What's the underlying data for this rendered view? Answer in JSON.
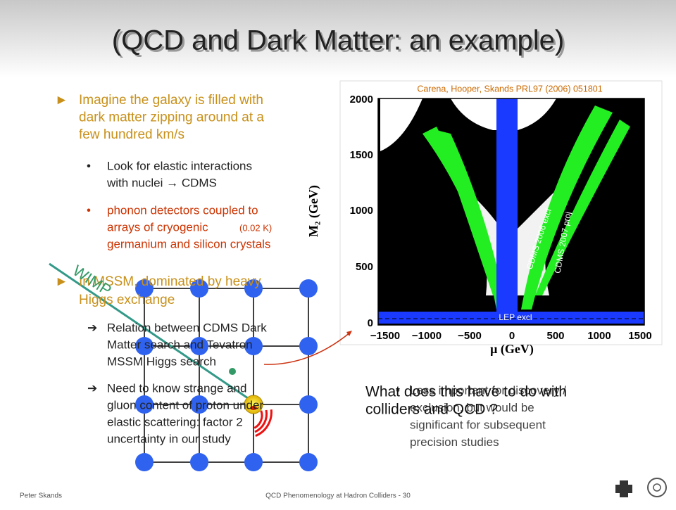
{
  "title": "(QCD and Dark Matter: an example)",
  "bullets": [
    {
      "lines": [
        "Imagine the galaxy is filled with",
        "dark matter zipping around at a",
        "few hundred km/s"
      ]
    },
    {
      "lines": [
        "Look for elastic interactions",
        "with nuclei → CDMS"
      ]
    },
    {
      "lines": [
        "phonon detectors coupled to",
        "arrays of cryogenic",
        "germanium and silicon crystals"
      ],
      "note": "(0.02 K)"
    },
    {
      "lines": [
        "In MSSM, dominated by heavy",
        "Higgs exchange"
      ]
    },
    {
      "lines": [
        "Relation between CDMS Dark",
        "Matter search and Tevatron",
        "MSSM Higgs search"
      ]
    },
    {
      "lines": [
        "Need to know strange and",
        "gluon content of proton under",
        "elastic scattering: factor 2",
        "uncertainty in our study"
      ]
    }
  ],
  "plot": {
    "citation": "Carena, Hooper, Skands PRL97 (2006) 051801",
    "y_label": "M₂ (GeV)",
    "x_label": "μ (GeV)",
    "yticks": [
      "0",
      "500",
      "1000",
      "1500",
      "2000"
    ],
    "xticks": [
      "−1500",
      "−1000",
      "−500",
      "0",
      "500",
      "1000",
      "1500"
    ],
    "annotations": [
      "LEP excl",
      "CDMS 2006 excl",
      "CDMS 2007 proj"
    ]
  },
  "wimp_label": "WIMP",
  "question": [
    "What does this have to do with",
    "colliders and QCD ?"
  ],
  "side_bullet": [
    "Less important for discovery /",
    "exclusion, but would be",
    "significant for subsequent",
    "precision studies"
  ],
  "footer": {
    "author": "Peter Skands",
    "center": "QCD Phenomenology at Hadron Colliders - 30"
  }
}
